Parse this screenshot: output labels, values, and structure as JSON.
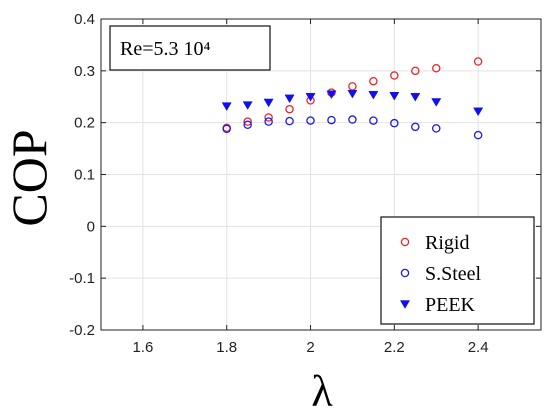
{
  "chart_data": {
    "type": "scatter",
    "title": "",
    "xlabel": "λ",
    "ylabel": "COP",
    "xlim": [
      1.5,
      2.55
    ],
    "ylim": [
      -0.2,
      0.4
    ],
    "xticks": [
      1.6,
      1.8,
      2,
      2.2,
      2.4
    ],
    "yticks": [
      -0.2,
      -0.1,
      0,
      0.1,
      0.2,
      0.3,
      0.4
    ],
    "xtick_labels": [
      "1.6",
      "1.8",
      "2",
      "2.2",
      "2.4"
    ],
    "ytick_labels": [
      "-0.2",
      "-0.1",
      "0",
      "0.1",
      "0.2",
      "0.3",
      "0.4"
    ],
    "grid": true,
    "legend_position": "bottom-right",
    "annotation": "Re=5.3 10⁴",
    "series": [
      {
        "name": "Rigid",
        "marker": "open-circle",
        "color": "#e8262a",
        "x": [
          1.8,
          1.85,
          1.9,
          1.95,
          2.0,
          2.05,
          2.1,
          2.15,
          2.2,
          2.25,
          2.3,
          2.4
        ],
        "y": [
          0.19,
          0.202,
          0.21,
          0.226,
          0.243,
          0.258,
          0.27,
          0.28,
          0.291,
          0.3,
          0.305,
          0.318
        ]
      },
      {
        "name": "S.Steel",
        "marker": "open-circle",
        "color": "#1a1aee",
        "x": [
          1.8,
          1.85,
          1.9,
          1.95,
          2.0,
          2.05,
          2.1,
          2.15,
          2.2,
          2.25,
          2.3,
          2.4
        ],
        "y": [
          0.188,
          0.196,
          0.202,
          0.203,
          0.204,
          0.205,
          0.206,
          0.204,
          0.199,
          0.192,
          0.189,
          0.176
        ]
      },
      {
        "name": "PEEK",
        "marker": "filled-triangle-down",
        "color": "#1010ee",
        "x": [
          1.8,
          1.85,
          1.9,
          1.95,
          2.0,
          2.05,
          2.1,
          2.15,
          2.2,
          2.25,
          2.3,
          2.4
        ],
        "y": [
          0.232,
          0.234,
          0.239,
          0.247,
          0.25,
          0.255,
          0.256,
          0.254,
          0.252,
          0.25,
          0.24,
          0.222
        ]
      }
    ]
  }
}
